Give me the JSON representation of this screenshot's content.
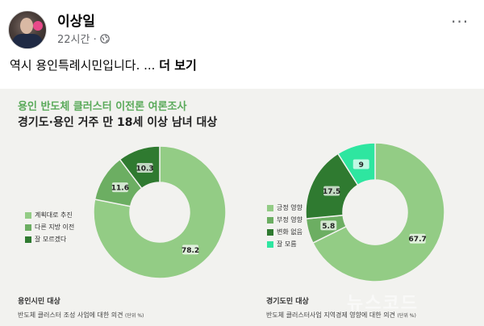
{
  "post": {
    "author": "이상일",
    "time": "22시간 ·",
    "text": "역시 용인특례시민입니다. ...",
    "more_link": "더 보기",
    "menu": "···"
  },
  "card": {
    "title": "용인 반도체 클러스터 이전론 여론조사",
    "subtitle": "경기도·용인 거주 만 18세 이상 남녀 대상",
    "watermark": "뉴스코드"
  },
  "chart_data": [
    {
      "type": "pie",
      "categories": [
        "계획대로 추진",
        "다른 지방 이전",
        "잘 모르겠다"
      ],
      "values": [
        78.2,
        11.6,
        10.3
      ],
      "value_labels": [
        "78.2",
        "11.6",
        "10.3"
      ],
      "colors": [
        "#93cc85",
        "#6cae62",
        "#2f7a30"
      ],
      "title": "용인시민 대상",
      "note": "반도체 클러스터 조성 사업에 대한 의견",
      "unit": "(단위 %)",
      "legend": "left"
    },
    {
      "type": "pie",
      "categories": [
        "긍정 영향",
        "부정 영향",
        "변화 없음",
        "잘 모름"
      ],
      "values": [
        67.7,
        5.8,
        17.5,
        9
      ],
      "value_labels": [
        "67.7",
        "5.8",
        "17.5",
        "9"
      ],
      "colors": [
        "#93cc85",
        "#6cae62",
        "#2f7a30",
        "#2ee6a0"
      ],
      "title": "경기도민 대상",
      "note": "반도체 클러스터사업 지역경제 영향에 대한 의견",
      "unit": "(단위 %)",
      "legend": "left"
    }
  ]
}
